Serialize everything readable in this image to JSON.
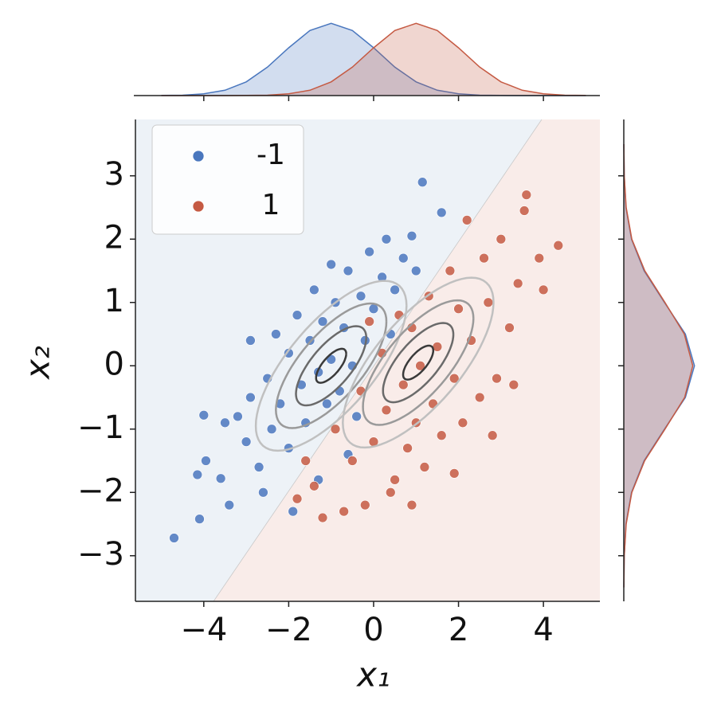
{
  "chart_data": {
    "type": "scatter",
    "x_label": "x₁",
    "y_label": "x₂",
    "xlim": [
      -5.61,
      5.33
    ],
    "ylim": [
      -3.72,
      3.89
    ],
    "xticks": [
      {
        "value": -4,
        "label": "−4"
      },
      {
        "value": -2,
        "label": "−2"
      },
      0,
      2,
      4
    ],
    "yticks": [
      {
        "value": -3,
        "label": "−3"
      },
      {
        "value": -2,
        "label": "−2"
      },
      {
        "value": -1,
        "label": "−1"
      },
      0,
      1,
      2,
      3
    ],
    "legend": "upper left",
    "boundary": {
      "x": [
        -3.77,
        3.96
      ],
      "y": [
        -3.72,
        3.89
      ]
    },
    "contour_colors": [
      "#3a3a3a",
      "#6a6a6a",
      "#9a9a9a",
      "#c0c0c0"
    ],
    "marginal_x": {
      "grid": [
        -5,
        -4.5,
        -4,
        -3.5,
        -3,
        -2.5,
        -2,
        -1.5,
        -1,
        -0.5,
        0,
        0.5,
        1,
        1.5,
        2,
        2.5,
        3,
        3.5,
        4,
        4.5,
        5
      ],
      "ylim": [
        0,
        0.38
      ]
    },
    "marginal_y": {
      "grid": [
        -3.5,
        -3,
        -2.5,
        -2,
        -1.5,
        -1,
        -0.5,
        0,
        0.5,
        1,
        1.5,
        2,
        2.5,
        3,
        3.5
      ],
      "xlim": [
        0,
        0.45
      ]
    },
    "series": [
      {
        "name": "-1",
        "color": "#4a77be",
        "region_color": "#edf2f7",
        "x": [
          -4.7,
          -4.1,
          -4.0,
          -3.95,
          -4.15,
          -3.6,
          -3.4,
          -3.2,
          -3.0,
          -2.9,
          -2.7,
          -2.5,
          -2.4,
          -2.3,
          -2.2,
          -2.0,
          -2.0,
          -1.8,
          -1.7,
          -1.6,
          -1.5,
          -1.4,
          -1.3,
          -1.2,
          -1.1,
          -1.0,
          -0.9,
          -0.8,
          -0.7,
          -0.6,
          -0.5,
          -0.4,
          -0.3,
          -0.2,
          -0.1,
          0.0,
          0.2,
          0.3,
          0.5,
          0.7,
          0.9,
          1.15,
          1.6,
          -1.9,
          -2.6,
          -3.5,
          -2.9,
          -1.0,
          0.4,
          1.0,
          -0.6,
          -1.3
        ],
        "y": [
          -2.72,
          -2.42,
          -0.78,
          -1.5,
          -1.72,
          -1.78,
          -2.2,
          -0.8,
          -1.2,
          -0.5,
          -1.6,
          -0.2,
          -1.0,
          0.5,
          -0.6,
          0.2,
          -1.3,
          0.8,
          -0.3,
          -0.9,
          0.4,
          1.2,
          -0.1,
          0.7,
          -0.6,
          0.1,
          1.0,
          -0.4,
          0.6,
          1.5,
          0.0,
          -0.8,
          1.1,
          0.4,
          1.8,
          0.9,
          1.4,
          2.0,
          1.2,
          1.7,
          2.05,
          2.9,
          2.42,
          -2.3,
          -2.0,
          -0.9,
          0.4,
          1.6,
          0.5,
          1.5,
          -1.4,
          -1.8
        ],
        "contour": {
          "mean": [
            -1.0,
            0.0
          ],
          "cov": [
            [
              1.4,
              0.75
            ],
            [
              0.75,
              0.8
            ]
          ],
          "levels": [
            0.3,
            0.7,
            1.1,
            1.5
          ]
        },
        "kde_x": [
          0.001,
          0.002,
          0.009,
          0.027,
          0.069,
          0.143,
          0.24,
          0.327,
          0.363,
          0.327,
          0.24,
          0.143,
          0.069,
          0.027,
          0.009,
          0.002,
          0.001,
          0,
          0,
          0,
          0
        ],
        "kde_y": [
          0.0005,
          0.003,
          0.013,
          0.046,
          0.121,
          0.242,
          0.366,
          0.42,
          0.366,
          0.242,
          0.121,
          0.046,
          0.013,
          0.003,
          0.0005
        ]
      },
      {
        "name": "1",
        "color": "#c55a43",
        "region_color": "#f9ece9",
        "x": [
          4.35,
          3.6,
          3.55,
          4.0,
          3.9,
          3.4,
          3.2,
          3.0,
          2.9,
          2.7,
          2.6,
          2.5,
          2.3,
          2.2,
          2.1,
          2.0,
          1.9,
          1.8,
          1.6,
          1.5,
          1.4,
          1.3,
          1.2,
          1.1,
          1.0,
          0.9,
          0.8,
          0.7,
          0.6,
          0.5,
          0.4,
          0.3,
          0.2,
          0.0,
          -0.2,
          -0.3,
          -0.5,
          -0.7,
          -0.9,
          -1.2,
          -1.4,
          -1.6,
          -1.8,
          2.8,
          1.9,
          -0.1,
          3.3,
          0.9
        ],
        "y": [
          1.9,
          2.7,
          2.45,
          1.2,
          1.7,
          1.3,
          0.6,
          2.0,
          -0.2,
          1.0,
          1.7,
          -0.5,
          0.4,
          2.3,
          -0.9,
          0.9,
          -0.2,
          1.5,
          -1.1,
          0.3,
          -0.6,
          1.1,
          -1.6,
          0.0,
          -0.9,
          0.6,
          -1.3,
          -0.3,
          0.8,
          -1.8,
          -2.0,
          -0.7,
          0.2,
          -1.2,
          -2.2,
          -0.4,
          -1.5,
          -2.3,
          -1.0,
          -2.4,
          -1.9,
          -1.5,
          -2.1,
          -1.1,
          -1.7,
          0.7,
          -0.3,
          -2.2
        ],
        "contour": {
          "mean": [
            1.05,
            0.05
          ],
          "cov": [
            [
              1.4,
              0.75
            ],
            [
              0.75,
              0.8
            ]
          ],
          "levels": [
            0.3,
            0.7,
            1.1,
            1.5
          ]
        },
        "kde_x": [
          0,
          0,
          0,
          0,
          0.001,
          0.002,
          0.009,
          0.027,
          0.069,
          0.143,
          0.24,
          0.327,
          0.363,
          0.327,
          0.24,
          0.143,
          0.069,
          0.027,
          0.009,
          0.002,
          0.001
        ],
        "kde_y": [
          0.0005,
          0.003,
          0.014,
          0.048,
          0.124,
          0.245,
          0.362,
          0.41,
          0.36,
          0.245,
          0.125,
          0.048,
          0.014,
          0.003,
          0.0005
        ]
      }
    ]
  }
}
